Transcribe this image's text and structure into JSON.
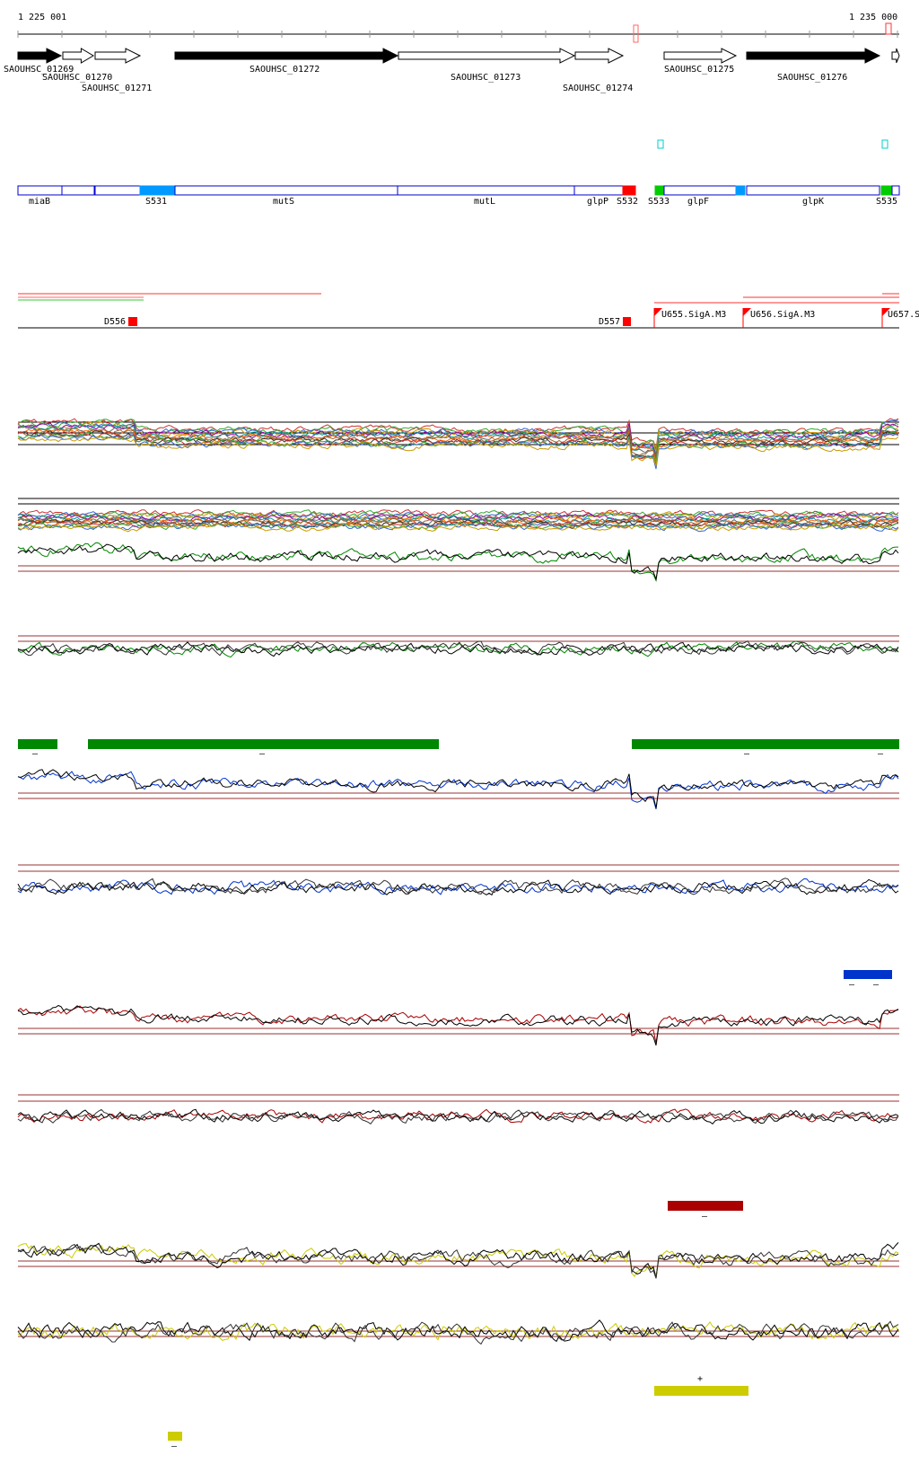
{
  "ruler": {
    "start_label": "1 225 001",
    "end_label": "1 235 000"
  },
  "genes": [
    {
      "label": "SAOUHSC_01269",
      "filled": true
    },
    {
      "label": "SAOUHSC_01270",
      "filled": false
    },
    {
      "label": "SAOUHSC_01271",
      "filled": false
    },
    {
      "label": "SAOUHSC_01272",
      "filled": true
    },
    {
      "label": "SAOUHSC_01273",
      "filled": false
    },
    {
      "label": "SAOUHSC_01274",
      "filled": false
    },
    {
      "label": "SAOUHSC_01275",
      "filled": false
    },
    {
      "label": "SAOUHSC_01276",
      "filled": true
    }
  ],
  "segments": [
    {
      "label": "miaB"
    },
    {
      "label": "S531"
    },
    {
      "label": "mutS"
    },
    {
      "label": "mutL"
    },
    {
      "label": "glpP"
    },
    {
      "label": "S532"
    },
    {
      "label": "S533"
    },
    {
      "label": "glpF"
    },
    {
      "label": "glpK"
    },
    {
      "label": "S535"
    }
  ],
  "markers_down": [
    {
      "label": "D556"
    },
    {
      "label": "D557"
    }
  ],
  "promoters": [
    {
      "label": "U655.SigA.M3"
    },
    {
      "label": "U656.SigA.M3"
    },
    {
      "label": "U657.S"
    }
  ],
  "strand_marks": [
    {
      "label": "–"
    },
    {
      "label": "–"
    },
    {
      "label": "–"
    },
    {
      "label": "–"
    },
    {
      "label": "–"
    },
    {
      "label": "–"
    },
    {
      "label": "–"
    },
    {
      "label": "+"
    },
    {
      "label": "–"
    }
  ],
  "colors": {
    "gene_fill": "#000000",
    "segment_blue": "#0000cc",
    "segment_light": "#0099ff",
    "segment_red": "#ff0000",
    "segment_green": "#00cc00",
    "cyan": "#00cccc",
    "green_track": "#008800",
    "blue_track": "#0033cc",
    "red_track": "#aa0000",
    "yellow_track": "#cccc00",
    "threshold": "#993333"
  }
}
